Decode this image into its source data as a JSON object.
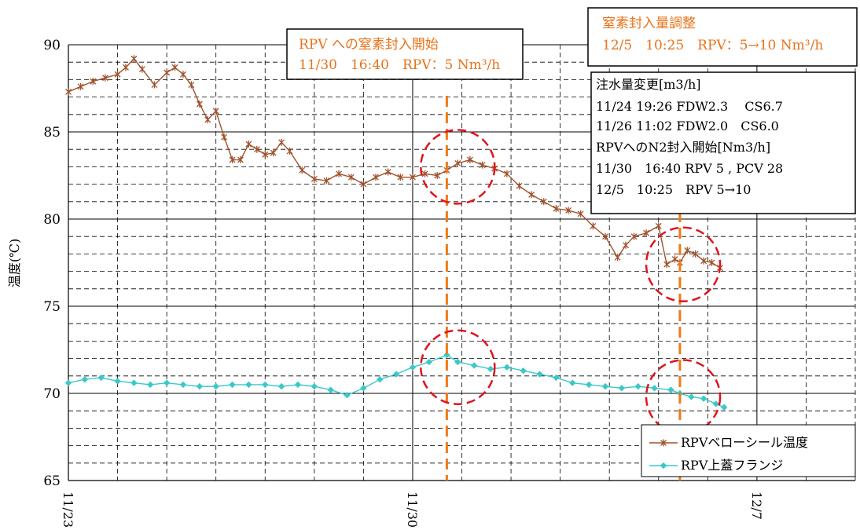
{
  "chart_data": {
    "type": "line",
    "ylabel": "温度(℃)",
    "ylim": [
      65,
      90
    ],
    "yticks": [
      65,
      70,
      75,
      80,
      85,
      90
    ],
    "xlim": [
      "2011-11-23 00:00",
      "2011-12-09 00:00"
    ],
    "x_tick_labels": [
      {
        "x": "2011-11-23 00:00",
        "label": "11/23"
      },
      {
        "x": "2011-11-30 00:00",
        "label": "11/30"
      },
      {
        "x": "2011-12-07 00:00",
        "label": "12/7"
      }
    ],
    "grid": true,
    "legend_position": "bottom-right",
    "series": [
      {
        "name": "RPVベローシール温度",
        "color": "#a0522d",
        "marker": "star",
        "points": [
          [
            "2011-11-23 00:00",
            87.3
          ],
          [
            "2011-11-23 06:00",
            87.6
          ],
          [
            "2011-11-23 12:00",
            87.9
          ],
          [
            "2011-11-23 18:00",
            88.1
          ],
          [
            "2011-11-24 00:00",
            88.3
          ],
          [
            "2011-11-24 04:00",
            88.7
          ],
          [
            "2011-11-24 08:00",
            89.2
          ],
          [
            "2011-11-24 12:00",
            88.6
          ],
          [
            "2011-11-24 18:00",
            87.7
          ],
          [
            "2011-11-25 00:00",
            88.4
          ],
          [
            "2011-11-25 04:00",
            88.7
          ],
          [
            "2011-11-25 08:00",
            88.3
          ],
          [
            "2011-11-25 12:00",
            87.7
          ],
          [
            "2011-11-25 16:00",
            86.6
          ],
          [
            "2011-11-25 20:00",
            85.7
          ],
          [
            "2011-11-26 00:00",
            86.2
          ],
          [
            "2011-11-26 04:00",
            84.7
          ],
          [
            "2011-11-26 08:00",
            83.4
          ],
          [
            "2011-11-26 12:00",
            83.4
          ],
          [
            "2011-11-26 16:00",
            84.3
          ],
          [
            "2011-11-26 20:00",
            84.0
          ],
          [
            "2011-11-27 00:00",
            83.7
          ],
          [
            "2011-11-27 04:00",
            83.8
          ],
          [
            "2011-11-27 08:00",
            84.4
          ],
          [
            "2011-11-27 12:00",
            83.9
          ],
          [
            "2011-11-27 18:00",
            82.8
          ],
          [
            "2011-11-28 00:00",
            82.3
          ],
          [
            "2011-11-28 06:00",
            82.2
          ],
          [
            "2011-11-28 12:00",
            82.6
          ],
          [
            "2011-11-28 18:00",
            82.4
          ],
          [
            "2011-11-29 00:00",
            82.0
          ],
          [
            "2011-11-29 06:00",
            82.4
          ],
          [
            "2011-11-29 12:00",
            82.7
          ],
          [
            "2011-11-29 18:00",
            82.4
          ],
          [
            "2011-11-30 00:00",
            82.4
          ],
          [
            "2011-11-30 06:00",
            82.6
          ],
          [
            "2011-11-30 12:00",
            82.5
          ],
          [
            "2011-11-30 16:40",
            82.8
          ],
          [
            "2011-11-30 22:00",
            83.2
          ],
          [
            "2011-12-01 04:00",
            83.4
          ],
          [
            "2011-12-01 10:00",
            83.1
          ],
          [
            "2011-12-01 16:00",
            82.9
          ],
          [
            "2011-12-01 22:00",
            82.6
          ],
          [
            "2011-12-02 04:00",
            81.9
          ],
          [
            "2011-12-02 10:00",
            81.4
          ],
          [
            "2011-12-02 16:00",
            81.0
          ],
          [
            "2011-12-02 22:00",
            80.6
          ],
          [
            "2011-12-03 04:00",
            80.5
          ],
          [
            "2011-12-03 10:00",
            80.3
          ],
          [
            "2011-12-03 16:00",
            79.6
          ],
          [
            "2011-12-03 22:00",
            79.0
          ],
          [
            "2011-12-04 04:00",
            77.8
          ],
          [
            "2011-12-04 08:00",
            78.5
          ],
          [
            "2011-12-04 12:00",
            79.0
          ],
          [
            "2011-12-04 18:00",
            79.2
          ],
          [
            "2011-12-05 00:00",
            79.6
          ],
          [
            "2011-12-05 04:00",
            77.4
          ],
          [
            "2011-12-05 08:00",
            77.7
          ],
          [
            "2011-12-05 10:25",
            77.5
          ],
          [
            "2011-12-05 14:00",
            78.2
          ],
          [
            "2011-12-05 18:00",
            78.0
          ],
          [
            "2011-12-05 22:00",
            77.6
          ],
          [
            "2011-12-06 02:00",
            77.5
          ],
          [
            "2011-12-06 06:00",
            77.2
          ]
        ]
      },
      {
        "name": "RPV上蓋フランジ",
        "color": "#3cc8c8",
        "marker": "diamond",
        "points": [
          [
            "2011-11-23 00:00",
            70.6
          ],
          [
            "2011-11-23 08:00",
            70.8
          ],
          [
            "2011-11-23 16:00",
            70.9
          ],
          [
            "2011-11-24 00:00",
            70.7
          ],
          [
            "2011-11-24 08:00",
            70.6
          ],
          [
            "2011-11-24 16:00",
            70.5
          ],
          [
            "2011-11-25 00:00",
            70.6
          ],
          [
            "2011-11-25 08:00",
            70.5
          ],
          [
            "2011-11-25 16:00",
            70.4
          ],
          [
            "2011-11-26 00:00",
            70.4
          ],
          [
            "2011-11-26 08:00",
            70.5
          ],
          [
            "2011-11-26 16:00",
            70.5
          ],
          [
            "2011-11-27 00:00",
            70.5
          ],
          [
            "2011-11-27 08:00",
            70.4
          ],
          [
            "2011-11-27 16:00",
            70.5
          ],
          [
            "2011-11-28 00:00",
            70.4
          ],
          [
            "2011-11-28 08:00",
            70.2
          ],
          [
            "2011-11-28 16:00",
            69.9
          ],
          [
            "2011-11-29 00:00",
            70.3
          ],
          [
            "2011-11-29 08:00",
            70.8
          ],
          [
            "2011-11-29 16:00",
            71.1
          ],
          [
            "2011-11-30 00:00",
            71.5
          ],
          [
            "2011-11-30 08:00",
            71.8
          ],
          [
            "2011-11-30 16:40",
            72.2
          ],
          [
            "2011-11-30 22:00",
            71.8
          ],
          [
            "2011-12-01 06:00",
            71.6
          ],
          [
            "2011-12-01 14:00",
            71.4
          ],
          [
            "2011-12-01 22:00",
            71.5
          ],
          [
            "2011-12-02 06:00",
            71.3
          ],
          [
            "2011-12-02 14:00",
            71.1
          ],
          [
            "2011-12-02 22:00",
            70.9
          ],
          [
            "2011-12-03 06:00",
            70.6
          ],
          [
            "2011-12-03 14:00",
            70.5
          ],
          [
            "2011-12-03 22:00",
            70.4
          ],
          [
            "2011-12-04 06:00",
            70.3
          ],
          [
            "2011-12-04 14:00",
            70.4
          ],
          [
            "2011-12-04 22:00",
            70.3
          ],
          [
            "2011-12-05 06:00",
            70.2
          ],
          [
            "2011-12-05 10:25",
            70.0
          ],
          [
            "2011-12-05 16:00",
            69.8
          ],
          [
            "2011-12-05 22:00",
            69.7
          ],
          [
            "2011-12-06 04:00",
            69.4
          ],
          [
            "2011-12-06 08:00",
            69.2
          ]
        ]
      }
    ],
    "vertical_markers": [
      {
        "x": "2011-11-30 16:40",
        "color": "#f07a14"
      },
      {
        "x": "2011-12-05 10:25",
        "color": "#f07a14"
      }
    ],
    "highlight_circles": [
      {
        "x": "2011-11-30 22:00",
        "y": 83.0,
        "color": "#e0141e"
      },
      {
        "x": "2011-11-30 22:00",
        "y": 71.5,
        "color": "#e0141e"
      },
      {
        "x": "2011-12-05 12:00",
        "y": 77.4,
        "color": "#e0141e"
      },
      {
        "x": "2011-12-05 12:00",
        "y": 69.8,
        "color": "#e0141e"
      }
    ],
    "annotations": {
      "rpv_start_title": "RPV への窒素封入開始",
      "rpv_start_detail": "11/30　16:40　RPV：5 Nm³/h",
      "adjust_title": "窒素封入量調整",
      "adjust_detail": "12/5　10:25　RPV：5→10 Nm³/h",
      "notes": [
        "注水量変更[m3/h]",
        "11/24 19:26 FDW2.3　 CS6.7",
        "11/26 11:02 FDW2.0　CS6.0",
        "RPVへのN2封入開始[Nm3/h]",
        "11/30　16:40 RPV 5 , PCV 28",
        "12/5　10:25　RPV 5→10"
      ],
      "annotation_text_color": "#e8731a"
    }
  }
}
